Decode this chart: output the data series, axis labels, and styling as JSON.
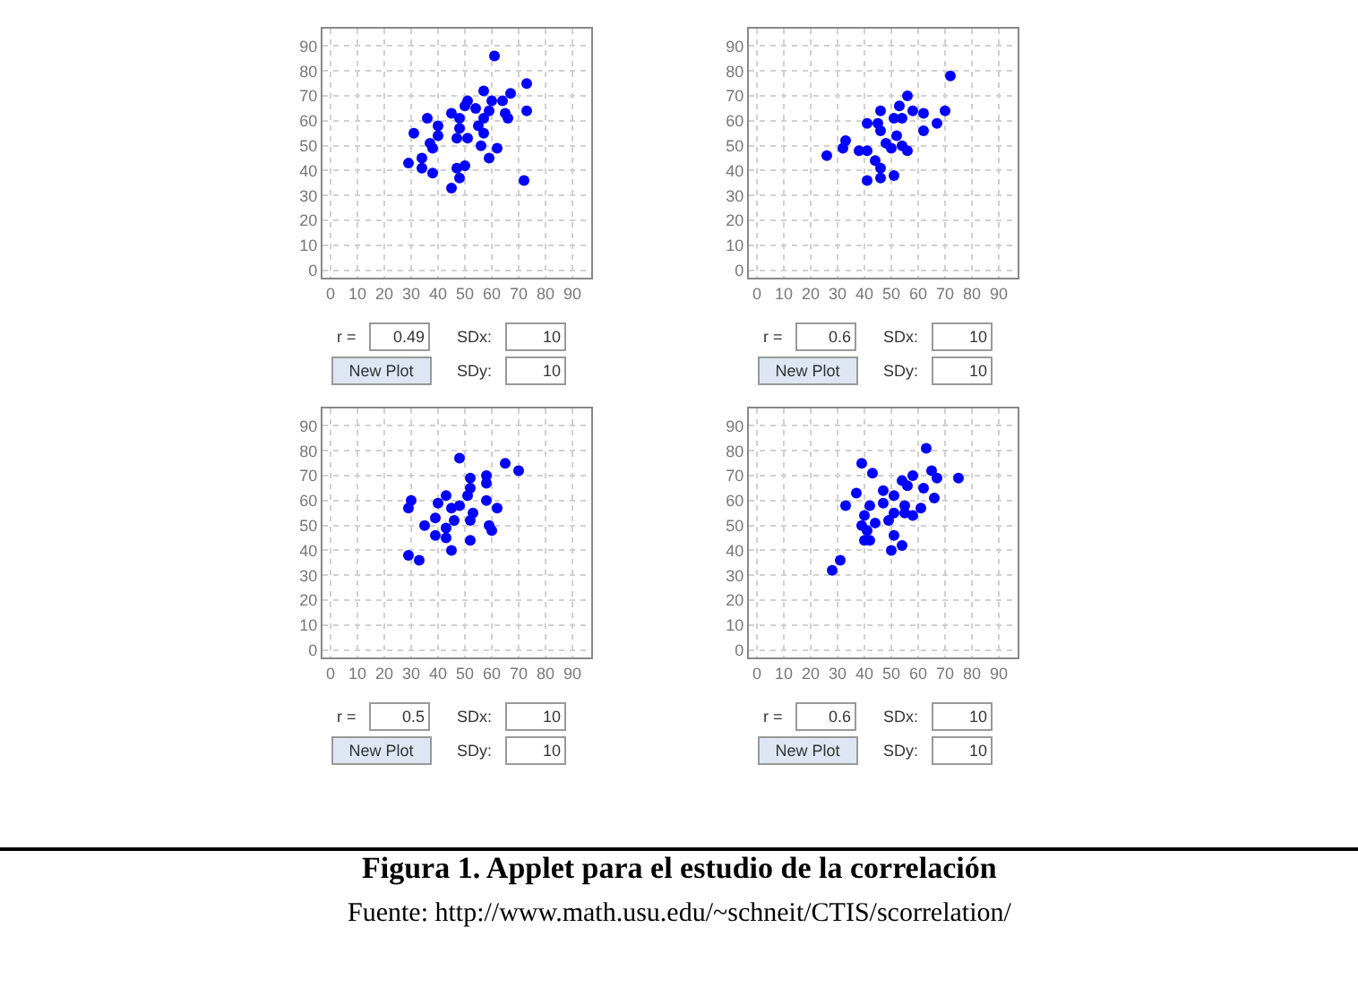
{
  "chart_data": [
    {
      "type": "scatter",
      "color": "#0000ff",
      "marker": "circle",
      "grid": true,
      "xlim": [
        -3,
        97
      ],
      "ylim": [
        -3,
        97
      ],
      "xticks": [
        0,
        10,
        20,
        30,
        40,
        50,
        60,
        70,
        80,
        90
      ],
      "yticks": [
        0,
        10,
        20,
        30,
        40,
        50,
        60,
        70,
        80,
        90
      ],
      "x": [
        61,
        73,
        57,
        67,
        64,
        60,
        51,
        50,
        54,
        45,
        59,
        65,
        73,
        36,
        48,
        57,
        66,
        40,
        31,
        48,
        55,
        57,
        40,
        47,
        51,
        37,
        56,
        62,
        38,
        34,
        59,
        29,
        34,
        38,
        47,
        50,
        48,
        45,
        72
      ],
      "values": [
        86,
        75,
        72,
        71,
        68,
        68,
        68,
        66,
        65,
        63,
        64,
        63,
        64,
        61,
        61,
        61,
        61,
        58,
        55,
        57,
        58,
        55,
        54,
        53,
        53,
        51,
        50,
        49,
        49,
        45,
        45,
        43,
        41,
        39,
        41,
        42,
        37,
        33,
        36
      ],
      "annotations": [
        "r =",
        "0.49",
        "SDx:",
        "10",
        "New Plot",
        "SDy:",
        "10"
      ]
    },
    {
      "type": "scatter",
      "color": "#0000ff",
      "marker": "circle",
      "grid": true,
      "xlim": [
        -3,
        97
      ],
      "ylim": [
        -3,
        97
      ],
      "xticks": [
        0,
        10,
        20,
        30,
        40,
        50,
        60,
        70,
        80,
        90
      ],
      "yticks": [
        0,
        10,
        20,
        30,
        40,
        50,
        60,
        70,
        80,
        90
      ],
      "x": [
        72,
        56,
        70,
        53,
        58,
        62,
        46,
        41,
        45,
        51,
        54,
        67,
        62,
        46,
        33,
        52,
        54,
        48,
        41,
        32,
        38,
        50,
        26,
        44,
        46,
        51,
        46,
        41,
        56
      ],
      "values": [
        78,
        70,
        64,
        66,
        64,
        63,
        64,
        59,
        59,
        61,
        61,
        59,
        56,
        56,
        52,
        54,
        50,
        51,
        48,
        49,
        48,
        49,
        46,
        44,
        41,
        38,
        37,
        36,
        48
      ],
      "annotations": [
        "r =",
        "0.6",
        "SDx:",
        "10",
        "New Plot",
        "SDy:",
        "10"
      ]
    },
    {
      "type": "scatter",
      "color": "#0000ff",
      "marker": "circle",
      "grid": true,
      "xlim": [
        -3,
        97
      ],
      "ylim": [
        -3,
        97
      ],
      "xticks": [
        0,
        10,
        20,
        30,
        40,
        50,
        60,
        70,
        80,
        90
      ],
      "yticks": [
        0,
        10,
        20,
        30,
        40,
        50,
        60,
        70,
        80,
        90
      ],
      "x": [
        48,
        65,
        70,
        58,
        52,
        58,
        52,
        51,
        43,
        30,
        58,
        40,
        48,
        29,
        62,
        45,
        53,
        39,
        46,
        52,
        59,
        35,
        43,
        60,
        39,
        43,
        52,
        45,
        29,
        33
      ],
      "values": [
        77,
        75,
        72,
        70,
        69,
        67,
        65,
        62,
        62,
        60,
        60,
        59,
        58,
        57,
        57,
        57,
        55,
        53,
        52,
        52,
        50,
        50,
        49,
        48,
        46,
        45,
        44,
        40,
        38,
        36
      ],
      "annotations": [
        "r =",
        "0.5",
        "SDx:",
        "10",
        "New Plot",
        "SDy:",
        "10"
      ]
    },
    {
      "type": "scatter",
      "color": "#0000ff",
      "marker": "circle",
      "grid": true,
      "xlim": [
        -3,
        97
      ],
      "ylim": [
        -3,
        97
      ],
      "xticks": [
        0,
        10,
        20,
        30,
        40,
        50,
        60,
        70,
        80,
        90
      ],
      "yticks": [
        0,
        10,
        20,
        30,
        40,
        50,
        60,
        70,
        80,
        90
      ],
      "x": [
        63,
        39,
        65,
        67,
        75,
        43,
        58,
        54,
        56,
        62,
        47,
        37,
        66,
        51,
        33,
        42,
        47,
        55,
        61,
        40,
        51,
        55,
        49,
        39,
        44,
        58,
        41,
        40,
        42,
        51,
        54,
        50,
        31,
        28
      ],
      "values": [
        81,
        75,
        72,
        69,
        69,
        71,
        70,
        68,
        66,
        65,
        64,
        63,
        61,
        62,
        58,
        58,
        59,
        58,
        57,
        54,
        55,
        55,
        52,
        50,
        51,
        54,
        48,
        44,
        44,
        46,
        42,
        40,
        36,
        32
      ],
      "annotations": [
        "r =",
        "0.6",
        "SDx:",
        "10",
        "New Plot",
        "SDy:",
        "10",
        "Figura 1. Applet para el estudio de la correlación",
        "Fuente: http://www.math.usu.edu/~schneit/CTIS/scorrelation/"
      ]
    }
  ]
}
